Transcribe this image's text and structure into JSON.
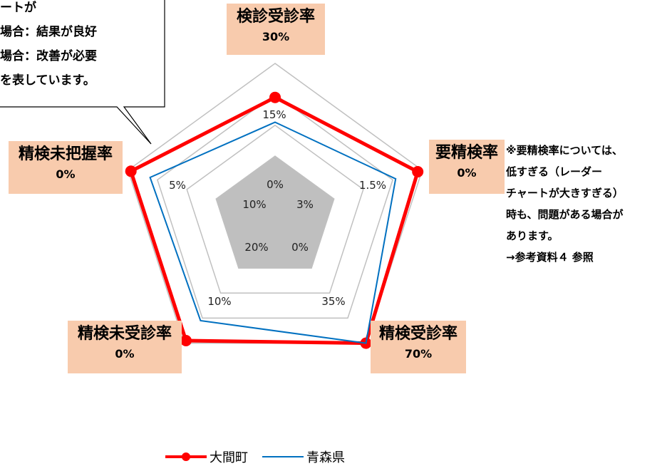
{
  "chart_data": {
    "type": "radar",
    "axes": [
      {
        "name": "検診受診率",
        "value": "30%",
        "ticks": [
          "15%",
          "0%"
        ]
      },
      {
        "name": "要精検率",
        "value": "0%",
        "ticks": [
          "1.5%",
          "3%"
        ]
      },
      {
        "name": "精検受診率",
        "value": "70%",
        "ticks": [
          "35%",
          "0%"
        ]
      },
      {
        "name": "精検未受診率",
        "value": "0%",
        "ticks": [
          "10%",
          "20%"
        ]
      },
      {
        "name": "精検未把握率",
        "value": "0%",
        "ticks": [
          "5%",
          "10%"
        ]
      }
    ],
    "series": [
      {
        "name": "大間町",
        "color": "#ff0000",
        "levels": [
          0.78,
          0.97,
          1.0,
          0.98,
          0.98
        ]
      },
      {
        "name": "青森県",
        "color": "#0070c0",
        "levels": [
          0.62,
          0.82,
          1.0,
          0.82,
          0.85
        ]
      }
    ],
    "grid": true
  },
  "callout": {
    "lines": [
      "ートが",
      "場合：結果が良好",
      "場合：改善が必要",
      "を表しています。"
    ]
  },
  "note": {
    "lines": [
      "※要精検率については、",
      "低すぎる（レーダー",
      "チャートが大きすぎる）",
      "時も、問題がある場合が",
      "あります。",
      "→参考資料４ 参照"
    ]
  }
}
